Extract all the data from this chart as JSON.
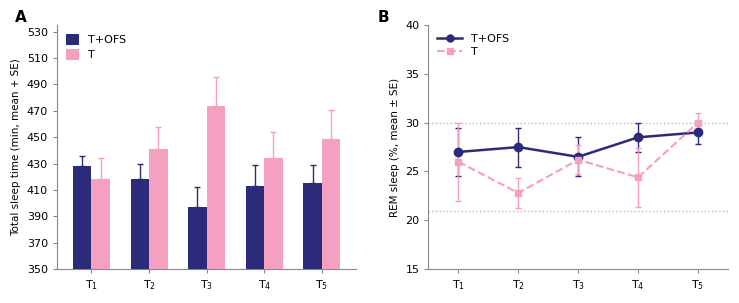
{
  "panel_A": {
    "ylabel": "Total sleep time (min, mean + SE)",
    "ylim": [
      350,
      535
    ],
    "yticks": [
      350,
      370,
      390,
      410,
      430,
      450,
      470,
      490,
      510,
      530
    ],
    "bar_width": 0.32,
    "tofs_values": [
      428,
      418,
      397,
      413,
      415
    ],
    "tofs_errors": [
      8,
      12,
      15,
      16,
      14
    ],
    "t_values": [
      418,
      441,
      474,
      434,
      449
    ],
    "t_errors": [
      16,
      17,
      22,
      20,
      22
    ],
    "tofs_color": "#2B2B7A",
    "t_color": "#F4A0C0",
    "legend_labels": [
      "T+OFS",
      "T"
    ]
  },
  "panel_B": {
    "ylabel": "REM sleep (%, mean ± SE)",
    "ylim": [
      15,
      40
    ],
    "yticks": [
      15,
      20,
      25,
      30,
      35,
      40
    ],
    "hlines": [
      21.0,
      30.0
    ],
    "tofs_values": [
      27.0,
      27.5,
      26.5,
      28.5,
      29.0
    ],
    "tofs_errors": [
      2.5,
      2.0,
      2.0,
      1.5,
      1.2
    ],
    "t_values": [
      26.0,
      22.8,
      26.2,
      24.4,
      30.0
    ],
    "t_errors": [
      4.0,
      1.5,
      1.5,
      3.0,
      1.0
    ],
    "tofs_color": "#2B2B7A",
    "t_color": "#F4A0C0",
    "legend_labels": [
      "T+OFS",
      "T"
    ]
  },
  "background_color": "#ffffff",
  "panel_label_fontsize": 11,
  "axis_fontsize": 7.5,
  "tick_fontsize": 8,
  "legend_fontsize": 8
}
